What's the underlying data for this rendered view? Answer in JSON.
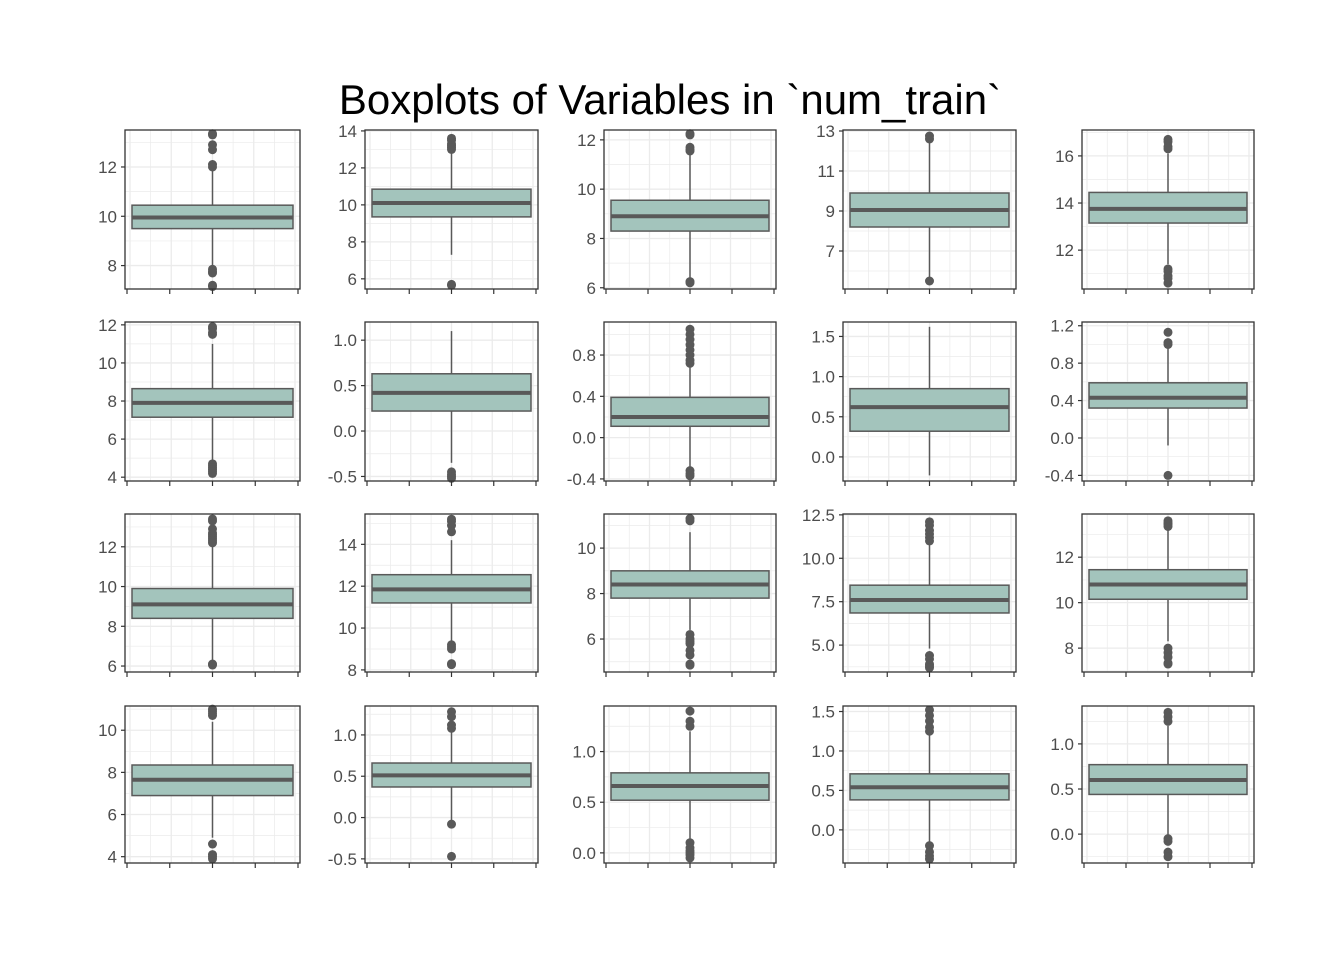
{
  "title": "Boxplots of Variables in `num_train`",
  "colors": {
    "box_fill": "#a3c4bc",
    "box_stroke": "#595959",
    "grid": "#ebebeb",
    "panel_border": "#333333",
    "text": "#4d4d4d"
  },
  "chart_data": [
    {
      "type": "box",
      "yticks": [
        8,
        10,
        12
      ],
      "ylim": [
        7.05,
        13.5
      ],
      "box": {
        "q1": 9.5,
        "median": 9.95,
        "q3": 10.45,
        "whisker_low": 7.9,
        "whisker_high": 12.0
      },
      "outliers": [
        13.3,
        13.35,
        12.9,
        12.7,
        12.1,
        12.0,
        7.85,
        7.75,
        7.7,
        7.2,
        7.15
      ]
    },
    {
      "type": "box",
      "yticks": [
        6,
        8,
        10,
        12,
        14
      ],
      "ylim": [
        5.45,
        14.05
      ],
      "box": {
        "q1": 9.35,
        "median": 10.1,
        "q3": 10.85,
        "whisker_low": 7.3,
        "whisker_high": 13.0
      },
      "outliers": [
        13.6,
        13.5,
        13.3,
        13.2,
        13.1,
        13.0,
        5.7,
        5.65
      ]
    },
    {
      "type": "box",
      "yticks": [
        6,
        8,
        10,
        12
      ],
      "ylim": [
        5.95,
        12.4
      ],
      "box": {
        "q1": 8.3,
        "median": 8.9,
        "q3": 9.55,
        "whisker_low": 6.4,
        "whisker_high": 11.4
      },
      "outliers": [
        12.25,
        12.2,
        11.7,
        11.6,
        11.55,
        6.25,
        6.2
      ]
    },
    {
      "type": "box",
      "yticks": [
        7,
        9,
        11,
        13
      ],
      "ylim": [
        5.1,
        13.05
      ],
      "box": {
        "q1": 8.2,
        "median": 9.05,
        "q3": 9.9,
        "whisker_low": 5.6,
        "whisker_high": 12.5
      },
      "outliers": [
        12.75,
        12.6,
        5.5
      ]
    },
    {
      "type": "box",
      "yticks": [
        12,
        14,
        16
      ],
      "ylim": [
        10.35,
        17.1
      ],
      "box": {
        "q1": 13.15,
        "median": 13.75,
        "q3": 14.45,
        "whisker_low": 11.4,
        "whisker_high": 16.1
      },
      "outliers": [
        16.7,
        16.6,
        16.4,
        16.3,
        11.2,
        11.1,
        10.9,
        10.8,
        10.6
      ]
    },
    {
      "type": "box",
      "yticks": [
        4,
        6,
        8,
        10,
        12
      ],
      "ylim": [
        3.8,
        12.15
      ],
      "box": {
        "q1": 7.15,
        "median": 7.9,
        "q3": 8.65,
        "whisker_low": 4.8,
        "whisker_high": 11.0
      },
      "outliers": [
        11.9,
        11.8,
        11.6,
        11.5,
        4.7,
        4.6,
        4.5,
        4.4,
        4.3,
        4.2
      ]
    },
    {
      "type": "box",
      "yticks": [
        -0.5,
        0.0,
        0.5,
        1.0
      ],
      "ylim": [
        -0.55,
        1.2
      ],
      "box": {
        "q1": 0.22,
        "median": 0.42,
        "q3": 0.63,
        "whisker_low": -0.35,
        "whisker_high": 1.1
      },
      "outliers": [
        -0.45,
        -0.48,
        -0.5,
        -0.52
      ]
    },
    {
      "type": "box",
      "yticks": [
        -0.4,
        0.0,
        0.4,
        0.8
      ],
      "ylim": [
        -0.42,
        1.12
      ],
      "box": {
        "q1": 0.11,
        "median": 0.2,
        "q3": 0.39,
        "whisker_low": -0.28,
        "whisker_high": 0.7
      },
      "outliers": [
        1.05,
        1.0,
        0.95,
        0.9,
        0.85,
        0.8,
        0.75,
        0.72,
        -0.32,
        -0.35,
        -0.37
      ]
    },
    {
      "type": "box",
      "yticks": [
        0.0,
        0.5,
        1.0,
        1.5
      ],
      "ylim": [
        -0.3,
        1.68
      ],
      "box": {
        "q1": 0.32,
        "median": 0.62,
        "q3": 0.85,
        "whisker_low": -0.23,
        "whisker_high": 1.62
      },
      "outliers": []
    },
    {
      "type": "box",
      "yticks": [
        -0.4,
        0.0,
        0.4,
        0.8,
        1.2
      ],
      "ylim": [
        -0.46,
        1.24
      ],
      "box": {
        "q1": 0.32,
        "median": 0.43,
        "q3": 0.59,
        "whisker_low": -0.08,
        "whisker_high": 1.0
      },
      "outliers": [
        1.13,
        1.02,
        1.0,
        -0.4
      ]
    },
    {
      "type": "box",
      "yticks": [
        6,
        8,
        10,
        12
      ],
      "ylim": [
        5.7,
        13.65
      ],
      "box": {
        "q1": 8.4,
        "median": 9.1,
        "q3": 9.9,
        "whisker_low": 6.2,
        "whisker_high": 12.0
      },
      "outliers": [
        13.4,
        13.3,
        12.9,
        12.7,
        12.6,
        12.5,
        12.4,
        12.3,
        12.2,
        6.1,
        6.05
      ]
    },
    {
      "type": "box",
      "yticks": [
        8,
        10,
        12,
        14
      ],
      "ylim": [
        7.9,
        15.45
      ],
      "box": {
        "q1": 11.2,
        "median": 11.85,
        "q3": 12.55,
        "whisker_low": 9.4,
        "whisker_high": 14.2
      },
      "outliers": [
        15.2,
        15.1,
        14.9,
        14.6,
        9.2,
        9.1,
        9.0,
        8.3,
        8.25
      ]
    },
    {
      "type": "box",
      "yticks": [
        6,
        8,
        10
      ],
      "ylim": [
        4.55,
        11.5
      ],
      "box": {
        "q1": 7.8,
        "median": 8.4,
        "q3": 9.0,
        "whisker_low": 6.4,
        "whisker_high": 10.7
      },
      "outliers": [
        11.3,
        11.2,
        6.2,
        6.0,
        5.9,
        5.8,
        5.5,
        5.3,
        4.9,
        4.85
      ]
    },
    {
      "type": "box",
      "yticks": [
        5.0,
        7.5,
        10.0,
        12.5
      ],
      "ylim": [
        3.45,
        12.55
      ],
      "box": {
        "q1": 6.85,
        "median": 7.6,
        "q3": 8.45,
        "whisker_low": 4.8,
        "whisker_high": 10.9
      },
      "outliers": [
        12.1,
        11.9,
        11.6,
        11.4,
        11.2,
        11.0,
        4.4,
        4.2,
        3.9,
        3.8,
        3.7
      ]
    },
    {
      "type": "box",
      "yticks": [
        8,
        10,
        12
      ],
      "ylim": [
        6.95,
        13.9
      ],
      "box": {
        "q1": 10.15,
        "median": 10.8,
        "q3": 11.45,
        "whisker_low": 8.3,
        "whisker_high": 13.2
      },
      "outliers": [
        13.6,
        13.5,
        13.45,
        13.35,
        8.0,
        7.8,
        7.6,
        7.35,
        7.3
      ]
    },
    {
      "type": "box",
      "yticks": [
        4,
        6,
        8,
        10
      ],
      "ylim": [
        3.7,
        11.15
      ],
      "box": {
        "q1": 6.9,
        "median": 7.65,
        "q3": 8.35,
        "whisker_low": 4.9,
        "whisker_high": 10.4
      },
      "outliers": [
        11.0,
        10.9,
        10.8,
        10.7,
        4.6,
        4.1,
        4.0,
        3.9
      ]
    },
    {
      "type": "box",
      "yticks": [
        -0.5,
        0.0,
        0.5,
        1.0
      ],
      "ylim": [
        -0.55,
        1.35
      ],
      "box": {
        "q1": 0.37,
        "median": 0.51,
        "q3": 0.66,
        "whisker_low": -0.05,
        "whisker_high": 1.05
      },
      "outliers": [
        1.28,
        1.22,
        1.12,
        1.08,
        -0.08,
        -0.47
      ]
    },
    {
      "type": "box",
      "yticks": [
        0.0,
        0.5,
        1.0
      ],
      "ylim": [
        -0.1,
        1.45
      ],
      "box": {
        "q1": 0.52,
        "median": 0.66,
        "q3": 0.79,
        "whisker_low": 0.12,
        "whisker_high": 1.2
      },
      "outliers": [
        1.4,
        1.3,
        1.25,
        0.1,
        0.05,
        0.02,
        0.0,
        -0.02,
        -0.05
      ]
    },
    {
      "type": "box",
      "yticks": [
        0.0,
        0.5,
        1.0,
        1.5
      ],
      "ylim": [
        -0.42,
        1.57
      ],
      "box": {
        "q1": 0.38,
        "median": 0.54,
        "q3": 0.71,
        "whisker_low": -0.15,
        "whisker_high": 1.2
      },
      "outliers": [
        1.52,
        1.45,
        1.38,
        1.3,
        1.25,
        -0.2,
        -0.28,
        -0.33,
        -0.37
      ]
    },
    {
      "type": "box",
      "yticks": [
        0.0,
        0.5,
        1.0
      ],
      "ylim": [
        -0.32,
        1.42
      ],
      "box": {
        "q1": 0.44,
        "median": 0.6,
        "q3": 0.77,
        "whisker_low": -0.02,
        "whisker_high": 1.2
      },
      "outliers": [
        1.35,
        1.3,
        1.25,
        -0.05,
        -0.08,
        -0.2,
        -0.25
      ]
    }
  ]
}
